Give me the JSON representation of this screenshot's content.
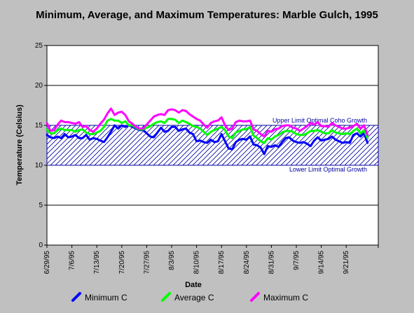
{
  "chart_data": {
    "type": "line",
    "title": "Minimum, Average, and Maximum Temperatures:  Marble Gulch, 1995",
    "xlabel": "Date",
    "ylabel": "Temperature (Celsius)",
    "ylim": [
      0,
      25
    ],
    "yticks": [
      "0",
      "5",
      "10",
      "15",
      "20",
      "25"
    ],
    "xlim": [
      "1995-06-29",
      "1995-09-30"
    ],
    "xticks": [
      "6/29/95",
      "7/6/95",
      "7/13/95",
      "7/20/95",
      "7/27/95",
      "8/3/95",
      "8/10/95",
      "8/17/95",
      "8/24/95",
      "8/31/95",
      "9/7/95",
      "9/14/95",
      "9/21/95"
    ],
    "grid": "horizontal",
    "legend_position": "bottom",
    "band": {
      "lower": 10,
      "upper": 15,
      "lower_label": "Lower Limit Optimal Growth",
      "upper_label": "Upper Limit Optimal Coho Growth",
      "color": "#0000a0"
    },
    "x": [
      "1995-06-29",
      "1995-06-30",
      "1995-07-01",
      "1995-07-02",
      "1995-07-03",
      "1995-07-04",
      "1995-07-05",
      "1995-07-06",
      "1995-07-07",
      "1995-07-08",
      "1995-07-09",
      "1995-07-10",
      "1995-07-11",
      "1995-07-12",
      "1995-07-13",
      "1995-07-14",
      "1995-07-15",
      "1995-07-16",
      "1995-07-17",
      "1995-07-18",
      "1995-07-19",
      "1995-07-20",
      "1995-07-21",
      "1995-07-22",
      "1995-07-23",
      "1995-07-24",
      "1995-07-25",
      "1995-07-26",
      "1995-07-27",
      "1995-07-28",
      "1995-07-29",
      "1995-07-30",
      "1995-07-31",
      "1995-08-01",
      "1995-08-02",
      "1995-08-03",
      "1995-08-04",
      "1995-08-05",
      "1995-08-06",
      "1995-08-07",
      "1995-08-08",
      "1995-08-09",
      "1995-08-10",
      "1995-08-11",
      "1995-08-12",
      "1995-08-13",
      "1995-08-14",
      "1995-08-15",
      "1995-08-16",
      "1995-08-17",
      "1995-08-18",
      "1995-08-19",
      "1995-08-20",
      "1995-08-21",
      "1995-08-22",
      "1995-08-23",
      "1995-08-24",
      "1995-08-25",
      "1995-08-26",
      "1995-08-27",
      "1995-08-28",
      "1995-08-29",
      "1995-08-30",
      "1995-08-31",
      "1995-09-01",
      "1995-09-02",
      "1995-09-03",
      "1995-09-04",
      "1995-09-05",
      "1995-09-06",
      "1995-09-07",
      "1995-09-08",
      "1995-09-09",
      "1995-09-10",
      "1995-09-11",
      "1995-09-12",
      "1995-09-13",
      "1995-09-14",
      "1995-09-15",
      "1995-09-16",
      "1995-09-17",
      "1995-09-18",
      "1995-09-19",
      "1995-09-20",
      "1995-09-21",
      "1995-09-22",
      "1995-09-23",
      "1995-09-24",
      "1995-09-25",
      "1995-09-26",
      "1995-09-27"
    ],
    "series": [
      {
        "name": "Minimum C",
        "color": "#0000ff",
        "values": [
          13.8,
          13.5,
          13.4,
          13.6,
          13.4,
          13.9,
          13.5,
          13.6,
          13.8,
          13.4,
          13.4,
          13.8,
          13.2,
          13.4,
          13.3,
          13.1,
          12.9,
          13.5,
          14.2,
          15.0,
          14.6,
          15.0,
          14.8,
          15.0,
          14.8,
          14.6,
          14.4,
          14.4,
          14.0,
          13.6,
          13.5,
          14.1,
          14.7,
          14.2,
          14.3,
          14.8,
          14.8,
          14.3,
          14.5,
          14.6,
          14.1,
          13.9,
          13.0,
          13.1,
          12.9,
          12.8,
          13.2,
          12.9,
          13.0,
          13.9,
          13.0,
          12.1,
          12.0,
          12.9,
          13.2,
          13.3,
          13.2,
          13.6,
          12.6,
          12.5,
          12.2,
          11.4,
          12.4,
          12.3,
          12.5,
          12.3,
          12.9,
          13.4,
          13.5,
          13.1,
          12.9,
          12.8,
          12.9,
          12.7,
          12.4,
          13.1,
          13.5,
          13.1,
          13.2,
          13.3,
          13.6,
          13.2,
          13.0,
          12.8,
          12.9,
          12.8,
          13.8,
          14.0,
          13.6,
          14.0,
          12.8
        ]
      },
      {
        "name": "Average C",
        "color": "#00ff00",
        "values": [
          14.5,
          14.0,
          14.0,
          14.4,
          14.6,
          14.4,
          14.4,
          14.4,
          14.2,
          14.4,
          14.5,
          14.1,
          13.9,
          13.9,
          14.1,
          14.3,
          14.8,
          15.6,
          15.8,
          15.6,
          15.6,
          15.3,
          15.5,
          15.0,
          15.0,
          14.7,
          14.5,
          14.5,
          14.7,
          14.9,
          15.2,
          15.4,
          15.5,
          15.3,
          15.8,
          15.8,
          15.7,
          15.3,
          15.6,
          15.4,
          15.2,
          14.9,
          14.8,
          14.6,
          14.2,
          13.8,
          14.2,
          14.4,
          14.6,
          14.8,
          14.4,
          13.6,
          13.4,
          14.1,
          14.3,
          14.5,
          14.5,
          14.8,
          13.7,
          13.4,
          13.0,
          12.8,
          13.4,
          13.2,
          13.6,
          13.8,
          14.1,
          14.3,
          14.3,
          14.2,
          13.9,
          13.8,
          13.8,
          14.0,
          14.3,
          14.3,
          14.4,
          14.2,
          14.0,
          14.0,
          14.4,
          14.1,
          14.0,
          13.9,
          14.0,
          13.9,
          14.3,
          14.6,
          14.0,
          14.4,
          13.4
        ]
      },
      {
        "name": "Maximum C",
        "color": "#ff00ff",
        "values": [
          15.3,
          14.3,
          14.4,
          15.1,
          15.6,
          15.4,
          15.4,
          15.3,
          15.2,
          15.4,
          14.8,
          14.9,
          14.4,
          14.2,
          14.6,
          15.2,
          15.7,
          16.5,
          17.1,
          16.3,
          16.6,
          16.7,
          16.3,
          15.5,
          15.2,
          14.8,
          14.6,
          14.6,
          15.1,
          15.6,
          16.1,
          16.3,
          16.4,
          16.3,
          16.9,
          17.0,
          16.9,
          16.6,
          16.9,
          16.8,
          16.4,
          16.1,
          15.8,
          15.6,
          15.1,
          14.7,
          15.3,
          15.5,
          15.6,
          16.0,
          15.0,
          14.4,
          14.6,
          15.4,
          15.6,
          15.5,
          15.5,
          15.6,
          14.5,
          14.3,
          13.9,
          13.6,
          14.3,
          14.2,
          14.5,
          14.6,
          14.9,
          15.0,
          15.0,
          14.7,
          14.6,
          14.3,
          14.6,
          14.9,
          15.3,
          15.1,
          15.4,
          14.9,
          14.9,
          14.8,
          15.3,
          15.0,
          14.8,
          14.6,
          14.6,
          14.7,
          14.9,
          15.2,
          14.6,
          15.0,
          13.8
        ]
      }
    ]
  }
}
